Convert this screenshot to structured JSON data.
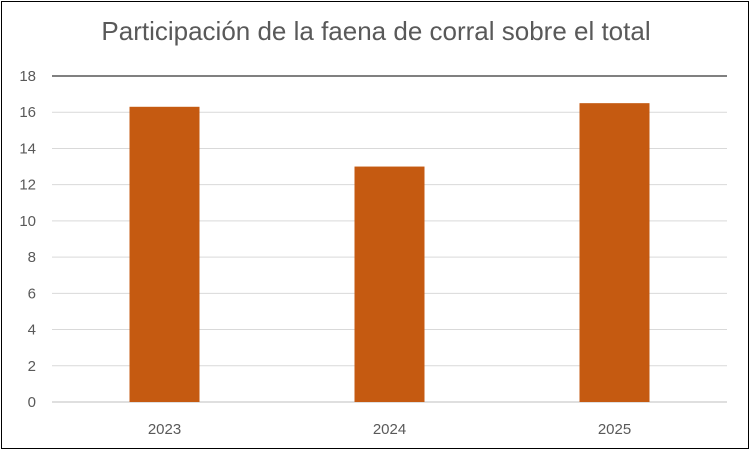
{
  "chart_data": {
    "type": "bar",
    "title": "Participación de la faena de corral sobre el total",
    "xlabel": "",
    "ylabel": "",
    "categories": [
      "2023",
      "2024",
      "2025"
    ],
    "values": [
      16.3,
      13.0,
      16.5
    ],
    "ylim": [
      0,
      18
    ],
    "yticks": [
      0,
      2,
      4,
      6,
      8,
      10,
      12,
      14,
      16,
      18
    ],
    "grid": true,
    "legend": "none",
    "colors": {
      "bar": "#C55A11",
      "grid": "#D9D9D9",
      "axis": "#BFBFBF",
      "text": "#595959"
    }
  }
}
